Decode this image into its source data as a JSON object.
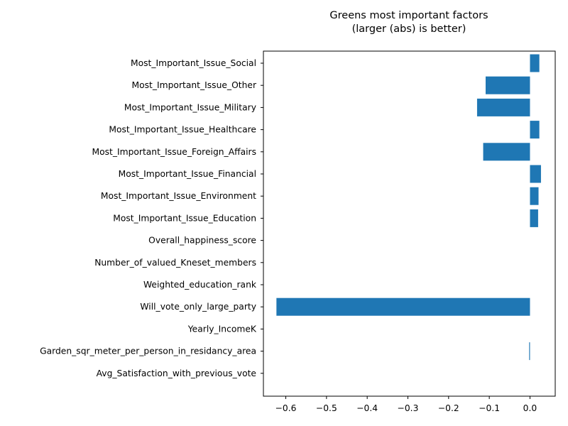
{
  "chart_data": {
    "type": "bar",
    "orientation": "horizontal",
    "title": "Greens most important factors",
    "subtitle": "(larger (abs) is better)",
    "xlabel": "",
    "ylabel": "",
    "xlim": [
      -0.655,
      0.062
    ],
    "xticks": [
      -0.6,
      -0.5,
      -0.4,
      -0.3,
      -0.2,
      -0.1,
      0.0
    ],
    "xtick_labels": [
      "−0.6",
      "−0.5",
      "−0.4",
      "−0.3",
      "−0.2",
      "−0.1",
      "0.0"
    ],
    "grid": false,
    "bar_color": "#1f77b4",
    "categories": [
      "Most_Important_Issue_Social",
      "Most_Important_Issue_Other",
      "Most_Important_Issue_Military",
      "Most_Important_Issue_Healthcare",
      "Most_Important_Issue_Foreign_Affairs",
      "Most_Important_Issue_Financial",
      "Most_Important_Issue_Environment",
      "Most_Important_Issue_Education",
      "Overall_happiness_score",
      "Number_of_valued_Kneset_members",
      "Weighted_education_rank",
      "Will_vote_only_large_party",
      "Yearly_IncomeK",
      "Garden_sqr_meter_per_person_in_residancy_area",
      "Avg_Satisfaction_with_previous_vote"
    ],
    "values": [
      0.023,
      -0.109,
      -0.13,
      0.023,
      -0.115,
      0.027,
      0.021,
      0.02,
      0.0,
      0.0,
      0.0,
      -0.623,
      0.0,
      -0.002,
      0.0
    ]
  }
}
